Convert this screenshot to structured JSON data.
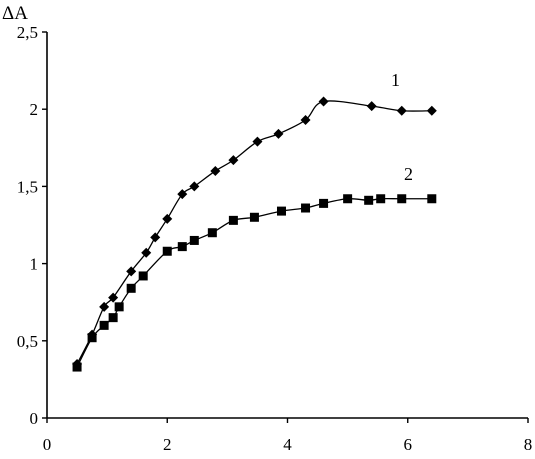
{
  "chart_data": {
    "type": "line",
    "ylabel": "ΔA",
    "xlabel": "",
    "xlim": [
      0,
      8
    ],
    "ylim": [
      0,
      2.5
    ],
    "xticks": [
      "0",
      "2",
      "4",
      "6",
      "8"
    ],
    "yticks": [
      "0",
      "0,5",
      "1",
      "1,5",
      "2",
      "2,5"
    ],
    "grid": false,
    "series": [
      {
        "name": "1",
        "marker": "diamond",
        "x": [
          0.5,
          0.75,
          0.95,
          1.1,
          1.4,
          1.65,
          1.8,
          2.0,
          2.25,
          2.45,
          2.8,
          3.1,
          3.5,
          3.85,
          4.3,
          4.6,
          5.4,
          5.9,
          6.4
        ],
        "y": [
          0.35,
          0.54,
          0.72,
          0.78,
          0.95,
          1.07,
          1.17,
          1.29,
          1.45,
          1.5,
          1.6,
          1.67,
          1.79,
          1.84,
          1.93,
          2.05,
          2.02,
          1.99,
          1.99
        ]
      },
      {
        "name": "2",
        "marker": "square",
        "x": [
          0.5,
          0.75,
          0.95,
          1.1,
          1.2,
          1.4,
          1.6,
          2.0,
          2.25,
          2.45,
          2.75,
          3.1,
          3.45,
          3.9,
          4.3,
          4.6,
          5.0,
          5.35,
          5.55,
          5.9,
          6.4
        ],
        "y": [
          0.33,
          0.52,
          0.6,
          0.65,
          0.72,
          0.84,
          0.92,
          1.08,
          1.11,
          1.15,
          1.2,
          1.28,
          1.3,
          1.34,
          1.36,
          1.39,
          1.42,
          1.41,
          1.42,
          1.42,
          1.42
        ]
      }
    ]
  }
}
